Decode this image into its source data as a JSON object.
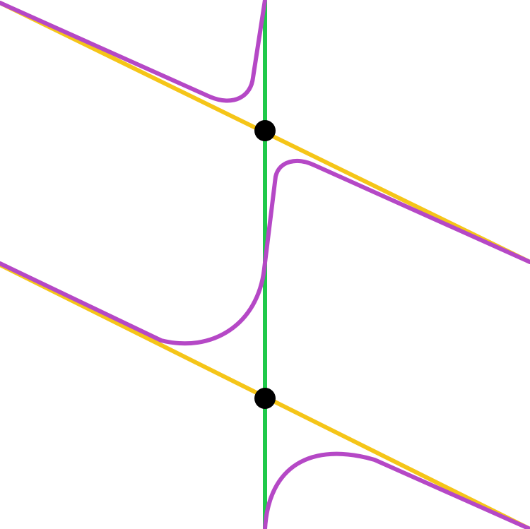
{
  "diagram": {
    "background": "#ffffff",
    "colors": {
      "vertical_line": "#1fc94a",
      "slanted_lines": "#f5c518",
      "curve": "#b548c6",
      "points": "#000000"
    },
    "elements": {
      "vertical_line": "vertical-line",
      "slanted_lines": [
        "upper-slanted-line",
        "lower-slanted-line"
      ],
      "curve_branches": [
        "curve-branch-top",
        "curve-branch-middle",
        "curve-branch-bottom"
      ],
      "points": [
        "upper-intersection-point",
        "lower-intersection-point"
      ]
    }
  }
}
